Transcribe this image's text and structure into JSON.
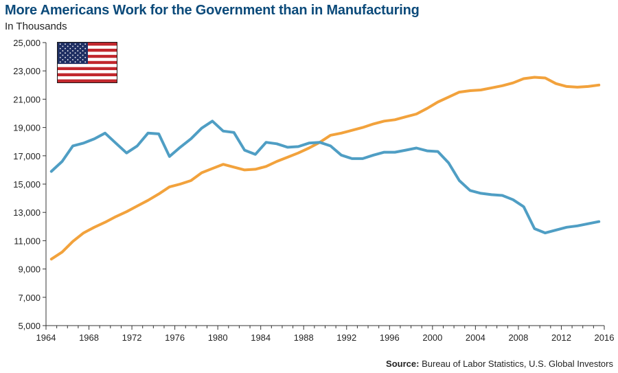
{
  "title": "More Americans Work for the Government than in Manufacturing",
  "subtitle": "In Thousands",
  "source": {
    "label": "Source:",
    "text": "Bureau of Labor Statistics, U.S. Global Investors"
  },
  "flag_icon": "us-flag-icon",
  "colors": {
    "government": "#f2a23c",
    "manufacturing": "#4f9ec4",
    "axis": "#333333",
    "flag_red": "#c1272d",
    "flag_blue": "#1f2f63"
  },
  "chart_data": {
    "type": "line",
    "title": "More Americans Work for the Government than in Manufacturing",
    "subtitle": "In Thousands",
    "xlim": [
      1964,
      2016
    ],
    "ylim": [
      5000,
      25000
    ],
    "x_ticks": [
      1964,
      1968,
      1972,
      1976,
      1980,
      1984,
      1988,
      1992,
      1996,
      2000,
      2004,
      2008,
      2012,
      2016
    ],
    "y_ticks": [
      5000,
      7000,
      9000,
      11000,
      13000,
      15000,
      17000,
      19000,
      21000,
      23000,
      25000
    ],
    "x_tick_labels": [
      "1964",
      "1968",
      "1972",
      "1976",
      "1980",
      "1984",
      "1988",
      "1992",
      "1996",
      "2000",
      "2004",
      "2008",
      "2012",
      "2016"
    ],
    "y_tick_labels": [
      "5,000",
      "7,000",
      "9,000",
      "11,000",
      "13,000",
      "15,000",
      "17,000",
      "19,000",
      "21,000",
      "23,000",
      "25,000"
    ],
    "grid": false,
    "legend": "none",
    "series": [
      {
        "color": "#f2a23c",
        "x": [
          1964.5,
          1965.5,
          1966.5,
          1967.5,
          1968.5,
          1969.5,
          1970.5,
          1971.5,
          1972.5,
          1973.5,
          1974.5,
          1975.5,
          1976.5,
          1977.5,
          1978.5,
          1979.5,
          1980.5,
          1981.5,
          1982.5,
          1983.5,
          1984.5,
          1985.5,
          1986.5,
          1987.5,
          1988.5,
          1989.5,
          1990.5,
          1991.5,
          1992.5,
          1993.5,
          1994.5,
          1995.5,
          1996.5,
          1997.5,
          1998.5,
          1999.5,
          2000.5,
          2001.5,
          2002.5,
          2003.5,
          2004.5,
          2005.5,
          2006.5,
          2007.5,
          2008.5,
          2009.5,
          2010.5,
          2011.5,
          2012.5,
          2013.5,
          2014.5,
          2015.5
        ],
        "values": [
          9700,
          10200,
          10950,
          11550,
          11950,
          12300,
          12700,
          13050,
          13450,
          13850,
          14300,
          14800,
          15000,
          15250,
          15800,
          16100,
          16400,
          16200,
          16000,
          16050,
          16250,
          16600,
          16900,
          17200,
          17550,
          17950,
          18450,
          18600,
          18800,
          19000,
          19250,
          19450,
          19550,
          19750,
          19950,
          20350,
          20800,
          21150,
          21500,
          21600,
          21650,
          21800,
          21950,
          22150,
          22450,
          22550,
          22500,
          22100,
          21900,
          21850,
          21900,
          22000
        ]
      },
      {
        "color": "#4f9ec4",
        "x": [
          1964.5,
          1965.5,
          1966.5,
          1967.5,
          1968.5,
          1969.5,
          1970.5,
          1971.5,
          1972.5,
          1973.5,
          1974.5,
          1975.5,
          1976.5,
          1977.5,
          1978.5,
          1979.5,
          1980.5,
          1981.5,
          1982.5,
          1983.5,
          1984.5,
          1985.5,
          1986.5,
          1987.5,
          1988.5,
          1989.5,
          1990.5,
          1991.5,
          1992.5,
          1993.5,
          1994.5,
          1995.5,
          1996.5,
          1997.5,
          1998.5,
          1999.5,
          2000.5,
          2001.5,
          2002.5,
          2003.5,
          2004.5,
          2005.5,
          2006.5,
          2007.5,
          2008.5,
          2009.5,
          2010.5,
          2011.5,
          2012.5,
          2013.5,
          2014.5,
          2015.5
        ],
        "values": [
          15900,
          16600,
          17700,
          17900,
          18200,
          18600,
          17900,
          17200,
          17700,
          18600,
          18550,
          16950,
          17600,
          18200,
          18950,
          19450,
          18750,
          18650,
          17400,
          17100,
          17950,
          17850,
          17600,
          17650,
          17900,
          17950,
          17700,
          17050,
          16800,
          16800,
          17050,
          17250,
          17250,
          17400,
          17550,
          17350,
          17300,
          16500,
          15250,
          14550,
          14350,
          14250,
          14200,
          13900,
          13400,
          11850,
          11550,
          11750,
          11950,
          12050,
          12200,
          12350
        ]
      }
    ]
  }
}
